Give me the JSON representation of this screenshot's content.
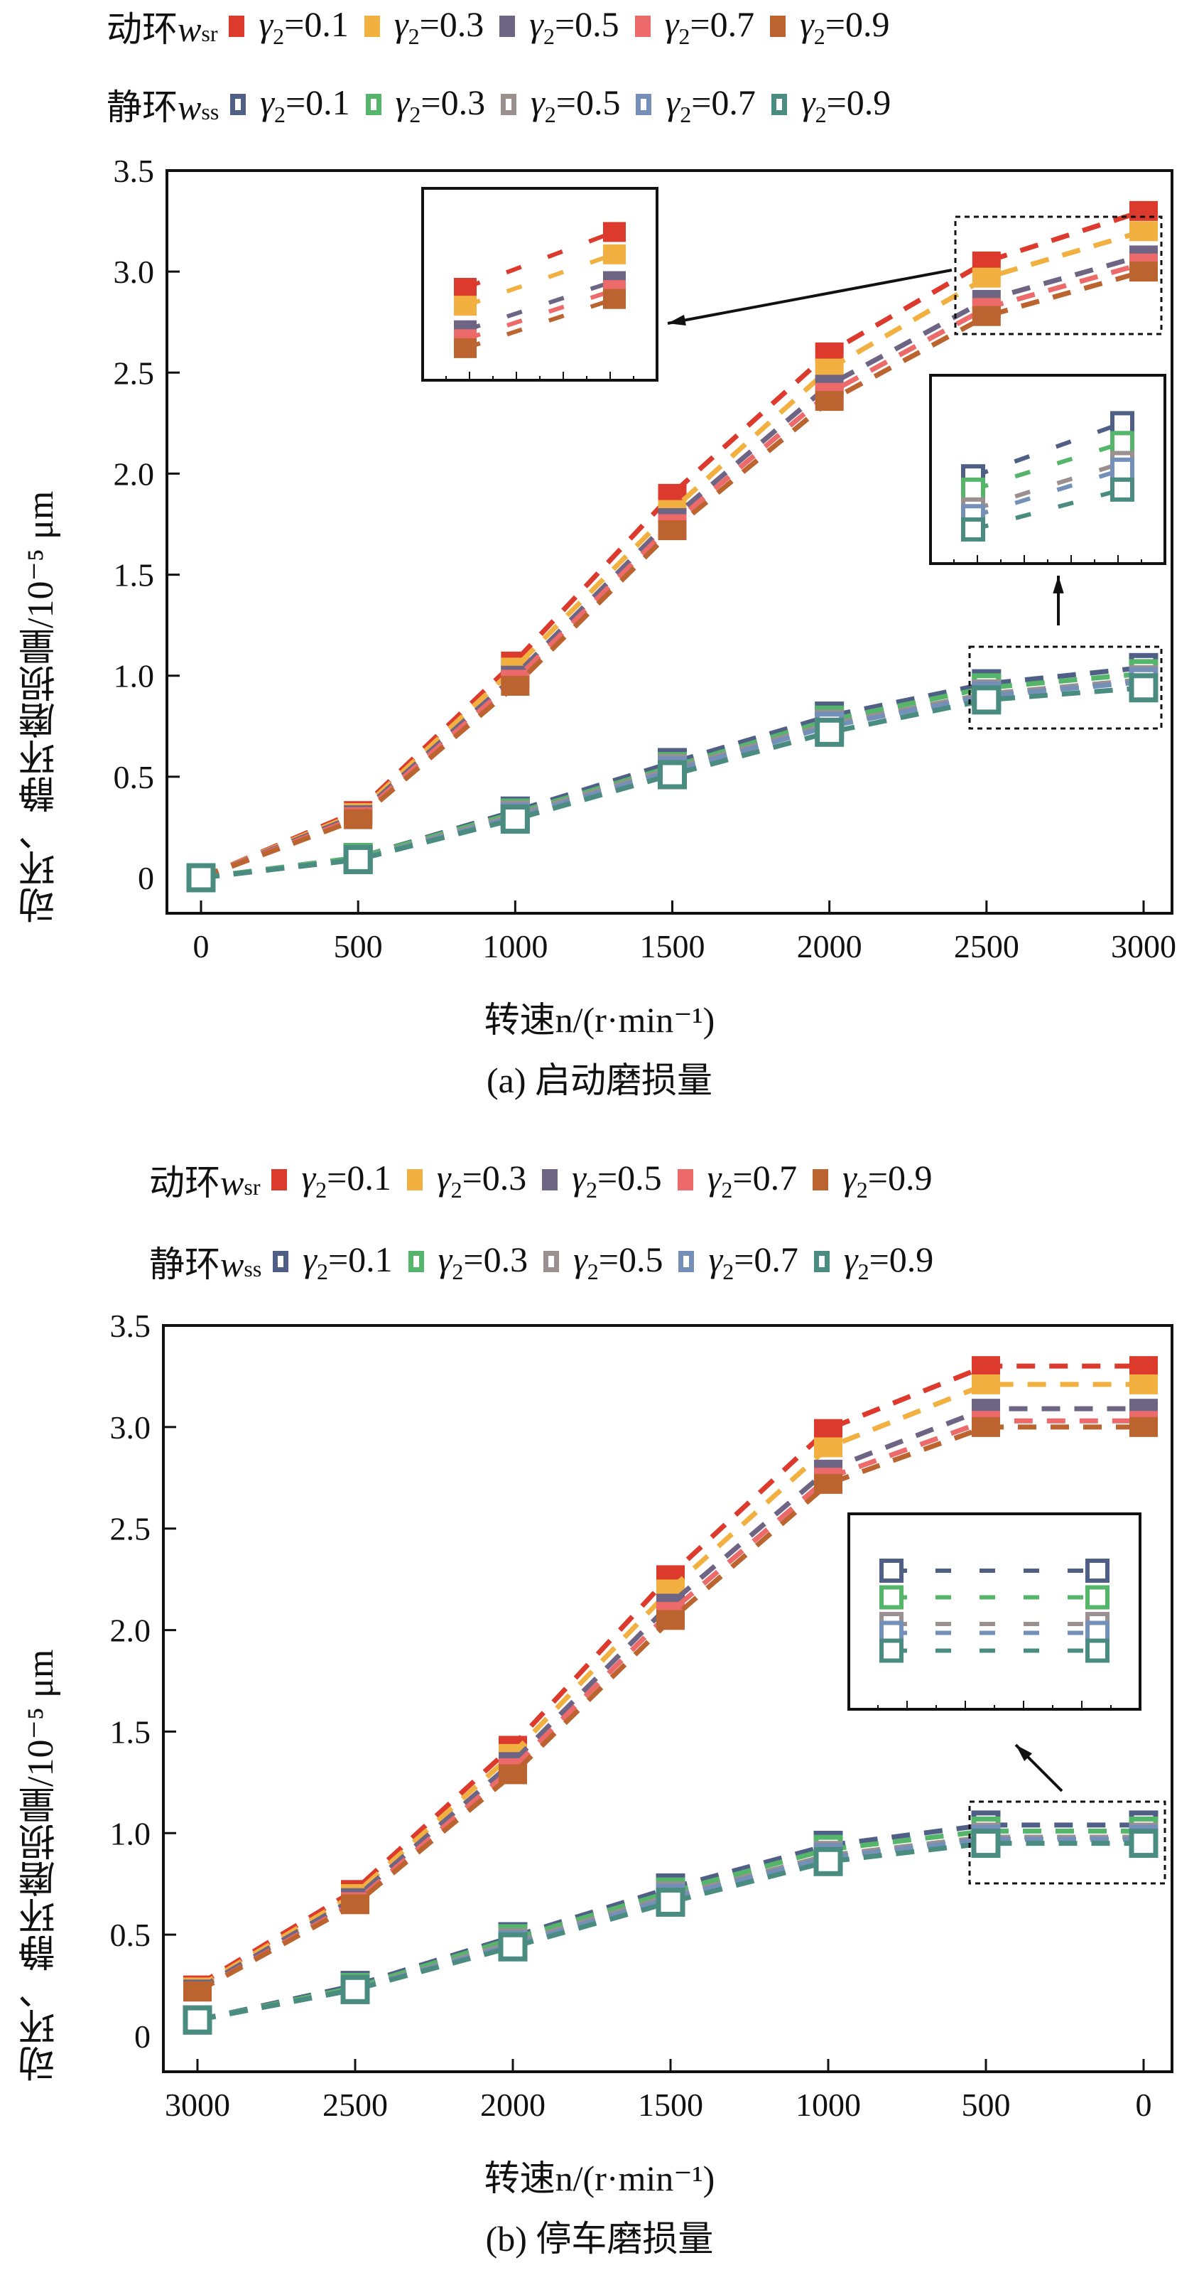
{
  "legend": {
    "rotating_prefix": "动环",
    "rotating_var": "w",
    "rotating_sub": "sr",
    "stationary_prefix": "静环",
    "stationary_var": "w",
    "stationary_sub": "ss",
    "gamma_symbol": "γ",
    "gamma_sub": "2",
    "items": [
      {
        "value": "=0.1",
        "sr_color": "#dd3a2e",
        "ss_color": "#4f5f85"
      },
      {
        "value": "=0.3",
        "sr_color": "#f2b040",
        "ss_color": "#55b56a"
      },
      {
        "value": "=0.5",
        "sr_color": "#6e6484",
        "ss_color": "#9a9090"
      },
      {
        "value": "=0.7",
        "sr_color": "#ec6a6a",
        "ss_color": "#7490b8"
      },
      {
        "value": "=0.9",
        "sr_color": "#bb6430",
        "ss_color": "#4a8c80"
      }
    ]
  },
  "chart_data": [
    {
      "type": "line",
      "title": "(a) 启动磨损量",
      "xlabel": "转速n/(r·min⁻¹)",
      "ylabel": "动环、静环磨损量/10⁻⁵ μm",
      "x": [
        0,
        500,
        1000,
        1500,
        2000,
        2500,
        3000
      ],
      "x_ticks": [
        "0",
        "500",
        "1000",
        "1500",
        "2000",
        "2500",
        "3000"
      ],
      "x_reversed": false,
      "ylim": [
        0,
        3.5
      ],
      "y_ticks": [
        "0",
        "0.5",
        "1.0",
        "1.5",
        "2.0",
        "2.5",
        "3.0",
        "3.5"
      ],
      "series": [
        {
          "name": "动环wsr γ2=0.1",
          "marker": "filled",
          "values": [
            0,
            0.33,
            1.07,
            1.9,
            2.6,
            3.05,
            3.3
          ]
        },
        {
          "name": "动环wsr γ2=0.3",
          "marker": "filled",
          "values": [
            0,
            0.32,
            1.04,
            1.82,
            2.52,
            2.97,
            3.2
          ]
        },
        {
          "name": "动环wsr γ2=0.5",
          "marker": "filled",
          "values": [
            0,
            0.31,
            1.0,
            1.78,
            2.44,
            2.86,
            3.08
          ]
        },
        {
          "name": "动环wsr γ2=0.7",
          "marker": "filled",
          "values": [
            0,
            0.3,
            0.98,
            1.75,
            2.4,
            2.82,
            3.04
          ]
        },
        {
          "name": "动环wsr γ2=0.9",
          "marker": "filled",
          "values": [
            0,
            0.29,
            0.95,
            1.72,
            2.36,
            2.78,
            3.0
          ]
        },
        {
          "name": "静环wss γ2=0.1",
          "marker": "hollow",
          "values": [
            0,
            0.1,
            0.33,
            0.57,
            0.8,
            0.96,
            1.04
          ]
        },
        {
          "name": "静环wss γ2=0.3",
          "marker": "hollow",
          "values": [
            0,
            0.1,
            0.32,
            0.55,
            0.78,
            0.94,
            1.01
          ]
        },
        {
          "name": "静环wss γ2=0.5",
          "marker": "hollow",
          "values": [
            0,
            0.09,
            0.31,
            0.54,
            0.76,
            0.91,
            0.98
          ]
        },
        {
          "name": "静环wss γ2=0.7",
          "marker": "hollow",
          "values": [
            0,
            0.09,
            0.3,
            0.53,
            0.75,
            0.9,
            0.97
          ]
        },
        {
          "name": "静环wss γ2=0.9",
          "marker": "hollow",
          "values": [
            0,
            0.09,
            0.29,
            0.51,
            0.72,
            0.88,
            0.94
          ]
        }
      ],
      "annotations": [
        "zoom inset of rotating ring at 2500–3000",
        "zoom inset of stationary ring at 2500–3000"
      ]
    },
    {
      "type": "line",
      "title": "(b) 停车磨损量",
      "xlabel": "转速n/(r·min⁻¹)",
      "ylabel": "动环、静环磨损量/10⁻⁵ μm",
      "x": [
        3000,
        2500,
        2000,
        1500,
        1000,
        500,
        0
      ],
      "x_ticks": [
        "3000",
        "2500",
        "2000",
        "1500",
        "1000",
        "500",
        "0"
      ],
      "x_reversed": true,
      "ylim": [
        0,
        3.5
      ],
      "y_ticks": [
        "0",
        "0.5",
        "1.0",
        "1.5",
        "2.0",
        "2.5",
        "3.0",
        "3.5"
      ],
      "series": [
        {
          "name": "动环wsr γ2=0.1",
          "marker": "filled",
          "values": [
            0.25,
            0.72,
            1.43,
            2.27,
            2.99,
            3.3,
            3.3
          ]
        },
        {
          "name": "动环wsr γ2=0.3",
          "marker": "filled",
          "values": [
            0.24,
            0.7,
            1.39,
            2.2,
            2.9,
            3.21,
            3.21
          ]
        },
        {
          "name": "动环wsr γ2=0.5",
          "marker": "filled",
          "values": [
            0.23,
            0.68,
            1.35,
            2.13,
            2.79,
            3.09,
            3.09
          ]
        },
        {
          "name": "动环wsr γ2=0.7",
          "marker": "filled",
          "values": [
            0.22,
            0.66,
            1.32,
            2.09,
            2.75,
            3.03,
            3.03
          ]
        },
        {
          "name": "动环wsr γ2=0.9",
          "marker": "filled",
          "values": [
            0.22,
            0.65,
            1.29,
            2.05,
            2.72,
            3.0,
            3.0
          ]
        },
        {
          "name": "静环wss γ2=0.1",
          "marker": "hollow",
          "values": [
            0.08,
            0.25,
            0.49,
            0.73,
            0.94,
            1.04,
            1.04
          ]
        },
        {
          "name": "静环wss γ2=0.3",
          "marker": "hollow",
          "values": [
            0.08,
            0.24,
            0.48,
            0.71,
            0.92,
            1.01,
            1.01
          ]
        },
        {
          "name": "静环wss γ2=0.5",
          "marker": "hollow",
          "values": [
            0.08,
            0.23,
            0.46,
            0.69,
            0.89,
            0.98,
            0.98
          ]
        },
        {
          "name": "静环wss γ2=0.7",
          "marker": "hollow",
          "values": [
            0.08,
            0.23,
            0.45,
            0.68,
            0.88,
            0.97,
            0.97
          ]
        },
        {
          "name": "静环wss γ2=0.9",
          "marker": "hollow",
          "values": [
            0.08,
            0.23,
            0.44,
            0.66,
            0.86,
            0.95,
            0.95
          ]
        }
      ],
      "annotations": [
        "zoom inset of stationary ring at 500–0"
      ]
    }
  ]
}
